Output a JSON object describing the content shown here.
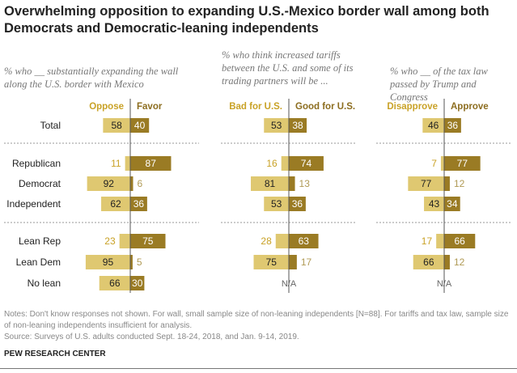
{
  "title": "Overwhelming opposition to expanding U.S.-Mexico border wall among both Democrats and Democratic-leaning independents",
  "colors": {
    "neg": "#dfc871",
    "pos": "#9a7b24",
    "neg_text": "#c9a227",
    "pos_text": "#8c6d1f"
  },
  "chart_data": {
    "type": "bar",
    "categories": [
      "Total",
      "Republican",
      "Democrat",
      "Independent",
      "Lean Rep",
      "Lean Dem",
      "No lean"
    ],
    "panels": [
      {
        "subtitle": "% who __ substantially expanding the wall along the U.S. border with Mexico",
        "neg_label": "Oppose",
        "pos_label": "Favor",
        "neg": [
          58,
          11,
          92,
          62,
          23,
          95,
          66
        ],
        "pos": [
          40,
          87,
          6,
          36,
          75,
          5,
          30
        ],
        "na_label": ""
      },
      {
        "subtitle": "% who think increased tariffs between the U.S. and some of its trading partners will be ...",
        "neg_label": "Bad for U.S.",
        "pos_label": "Good for U.S.",
        "neg": [
          53,
          16,
          81,
          53,
          28,
          75,
          null
        ],
        "pos": [
          38,
          74,
          13,
          36,
          63,
          17,
          null
        ],
        "na_label": "N/A"
      },
      {
        "subtitle": "% who __ of the tax law passed by Trump and Congress",
        "neg_label": "Disapprove",
        "pos_label": "Approve",
        "neg": [
          46,
          7,
          77,
          43,
          17,
          66,
          null
        ],
        "pos": [
          36,
          77,
          12,
          34,
          66,
          12,
          null
        ],
        "na_label": "N/A"
      }
    ]
  },
  "notes": "Notes: Don't know responses not shown. For wall, small sample size of non-leaning independents [N=88]. For tariffs and tax law, sample size of non-leaning independents insufficient for analysis.",
  "source": "Source: Surveys of U.S. adults conducted Sept. 18-24, 2018, and Jan. 9-14, 2019.",
  "brand": "PEW RESEARCH CENTER"
}
